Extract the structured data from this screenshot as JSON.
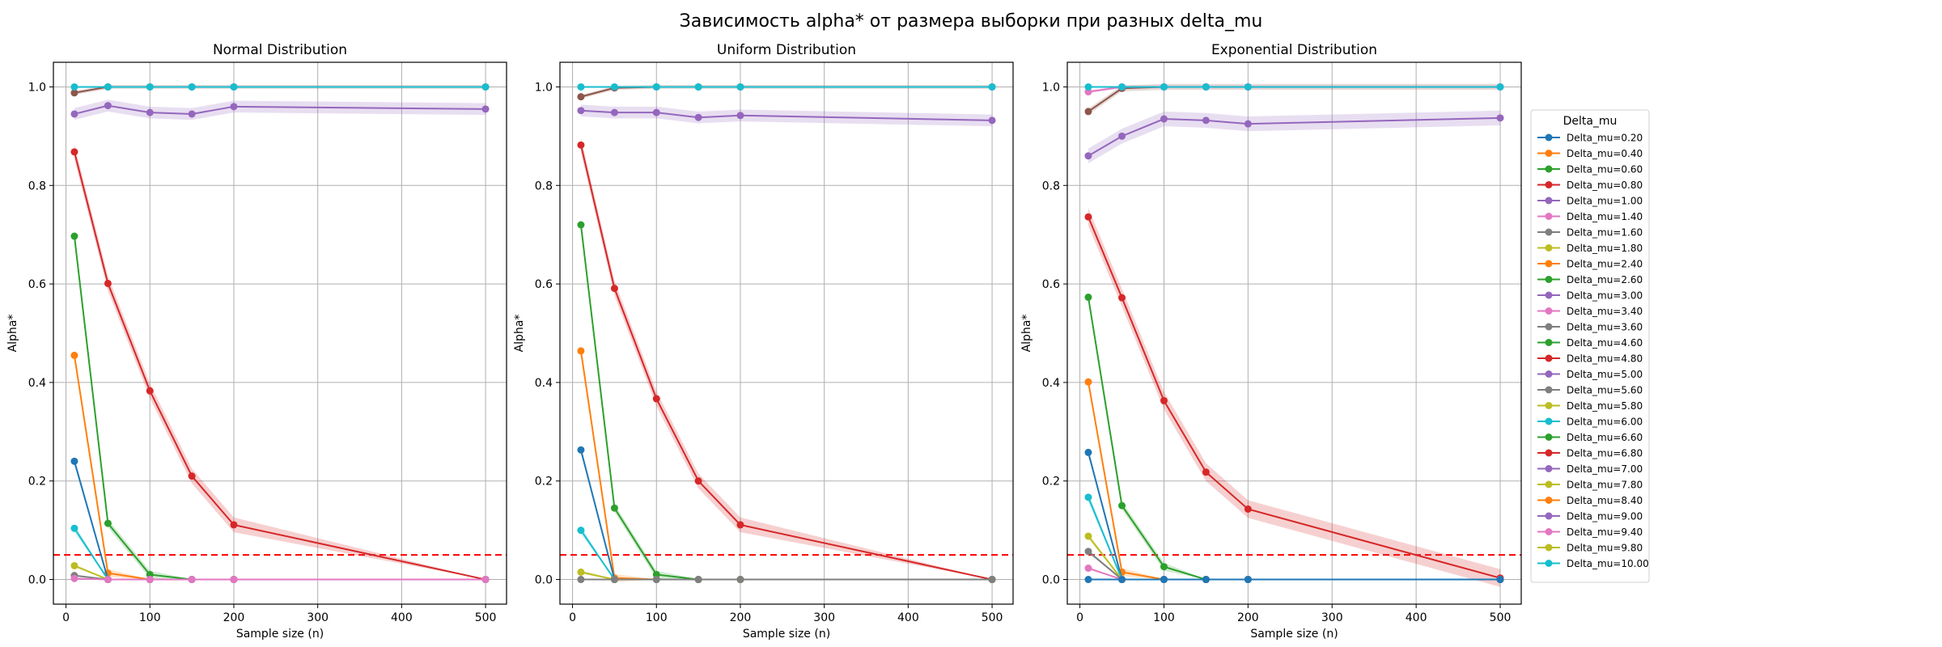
{
  "figure": {
    "title": "Зависимость alpha* от размера выборки при разных delta_mu"
  },
  "legend": {
    "title": "Delta_mu",
    "entries": [
      {
        "label": "Delta_mu=0.20",
        "color": "#1f77b4"
      },
      {
        "label": "Delta_mu=0.40",
        "color": "#ff7f0e"
      },
      {
        "label": "Delta_mu=0.60",
        "color": "#2ca02c"
      },
      {
        "label": "Delta_mu=0.80",
        "color": "#d62728"
      },
      {
        "label": "Delta_mu=1.00",
        "color": "#9467bd"
      },
      {
        "label": "Delta_mu=1.40",
        "color": "#e377c2"
      },
      {
        "label": "Delta_mu=1.60",
        "color": "#7f7f7f"
      },
      {
        "label": "Delta_mu=1.80",
        "color": "#bcbd22"
      },
      {
        "label": "Delta_mu=2.40",
        "color": "#ff7f0e"
      },
      {
        "label": "Delta_mu=2.60",
        "color": "#2ca02c"
      },
      {
        "label": "Delta_mu=3.00",
        "color": "#9467bd"
      },
      {
        "label": "Delta_mu=3.40",
        "color": "#e377c2"
      },
      {
        "label": "Delta_mu=3.60",
        "color": "#7f7f7f"
      },
      {
        "label": "Delta_mu=4.60",
        "color": "#2ca02c"
      },
      {
        "label": "Delta_mu=4.80",
        "color": "#d62728"
      },
      {
        "label": "Delta_mu=5.00",
        "color": "#9467bd"
      },
      {
        "label": "Delta_mu=5.60",
        "color": "#7f7f7f"
      },
      {
        "label": "Delta_mu=5.80",
        "color": "#bcbd22"
      },
      {
        "label": "Delta_mu=6.00",
        "color": "#17becf"
      },
      {
        "label": "Delta_mu=6.60",
        "color": "#2ca02c"
      },
      {
        "label": "Delta_mu=6.80",
        "color": "#d62728"
      },
      {
        "label": "Delta_mu=7.00",
        "color": "#9467bd"
      },
      {
        "label": "Delta_mu=7.80",
        "color": "#bcbd22"
      },
      {
        "label": "Delta_mu=8.40",
        "color": "#ff7f0e"
      },
      {
        "label": "Delta_mu=9.00",
        "color": "#9467bd"
      },
      {
        "label": "Delta_mu=9.40",
        "color": "#e377c2"
      },
      {
        "label": "Delta_mu=9.80",
        "color": "#bcbd22"
      },
      {
        "label": "Delta_mu=10.00",
        "color": "#17becf"
      }
    ]
  },
  "chart_data": [
    {
      "type": "line",
      "title": "Normal Distribution",
      "xlabel": "Sample size (n)",
      "ylabel": "Alpha*",
      "xlim": [
        -15,
        525
      ],
      "ylim": [
        -0.05,
        1.05
      ],
      "xticks": [
        0,
        100,
        200,
        300,
        400,
        500
      ],
      "yticks": [
        0.0,
        0.2,
        0.4,
        0.6,
        0.8,
        1.0
      ],
      "grid": true,
      "threshold": {
        "y": 0.05,
        "color": "#ff0000",
        "style": "dashed"
      },
      "x": [
        10,
        50,
        100,
        150,
        200,
        500
      ],
      "series": [
        {
          "color": "#9467bd",
          "values": [
            0.945,
            0.962,
            0.948,
            0.945,
            0.96,
            0.955
          ],
          "band": 0.012
        },
        {
          "color": "#d62728",
          "values": [
            0.868,
            0.601,
            0.383,
            0.21,
            0.111,
            0.0
          ],
          "band": 0.015
        },
        {
          "color": "#2ca02c",
          "values": [
            0.697,
            0.114,
            0.01,
            0.0,
            0.0,
            0.0
          ],
          "band": 0.008
        },
        {
          "color": "#ff7f0e",
          "values": [
            0.455,
            0.013,
            0.0,
            0.0,
            0.0,
            0.0
          ],
          "band": 0.008
        },
        {
          "color": "#1f77b4",
          "values": [
            0.24,
            0.0,
            0.0,
            0.0,
            0.0,
            0.0
          ],
          "band": 0.008
        },
        {
          "color": "#17becf",
          "values": [
            0.104,
            0.0,
            0.0,
            0.0,
            0.0,
            0.0
          ],
          "band": 0.008
        },
        {
          "color": "#bcbd22",
          "values": [
            0.028,
            0.0,
            0.0,
            0.0,
            0.0,
            0.0
          ],
          "band": 0.004
        },
        {
          "color": "#7f7f7f",
          "values": [
            0.008,
            0.0,
            0.0,
            0.0,
            0.0,
            0.0
          ],
          "band": 0.0
        },
        {
          "color": "#e377c2",
          "values": [
            0.002,
            0.0,
            0.0,
            0.0,
            0.0,
            0.0
          ],
          "band": 0.0
        },
        {
          "color": "#8c564b",
          "values": [
            0.988,
            1.0,
            1.0,
            1.0,
            1.0,
            1.0
          ],
          "band": 0.004
        },
        {
          "color": "#17becf",
          "values": [
            1.0,
            1.0,
            1.0,
            1.0,
            1.0,
            1.0
          ],
          "band": 0.0
        }
      ]
    },
    {
      "type": "line",
      "title": "Uniform Distribution",
      "xlabel": "Sample size (n)",
      "ylabel": "Alpha*",
      "xlim": [
        -15,
        525
      ],
      "ylim": [
        -0.05,
        1.05
      ],
      "xticks": [
        0,
        100,
        200,
        300,
        400,
        500
      ],
      "yticks": [
        0.0,
        0.2,
        0.4,
        0.6,
        0.8,
        1.0
      ],
      "grid": true,
      "threshold": {
        "y": 0.05,
        "color": "#ff0000",
        "style": "dashed"
      },
      "x": [
        10,
        50,
        100,
        150,
        200,
        500
      ],
      "series": [
        {
          "color": "#9467bd",
          "values": [
            0.952,
            0.948,
            0.948,
            0.938,
            0.942,
            0.932
          ],
          "band": 0.012
        },
        {
          "color": "#d62728",
          "values": [
            0.882,
            0.591,
            0.367,
            0.2,
            0.111,
            0.0
          ],
          "band": 0.015
        },
        {
          "color": "#2ca02c",
          "values": [
            0.72,
            0.145,
            0.01,
            0.0,
            0.0,
            0.0
          ],
          "band": 0.008
        },
        {
          "color": "#ff7f0e",
          "values": [
            0.464,
            0.003,
            0.0,
            0.0,
            0.0,
            0.0
          ],
          "band": 0.008
        },
        {
          "color": "#1f77b4",
          "values": [
            0.263,
            0.0,
            0.0,
            0.0,
            0.0,
            0.0
          ],
          "band": 0.008
        },
        {
          "color": "#17becf",
          "values": [
            0.1,
            0.0,
            0.0,
            0.0,
            0.0,
            0.0
          ],
          "band": 0.008
        },
        {
          "color": "#bcbd22",
          "values": [
            0.015,
            0.0,
            0.0,
            0.0,
            0.0,
            0.0
          ],
          "band": 0.004
        },
        {
          "color": "#7f7f7f",
          "values": [
            0.0,
            0.0,
            0.0,
            0.0,
            0.0,
            0.0
          ],
          "band": 0.0
        },
        {
          "color": "#8c564b",
          "values": [
            0.98,
            0.998,
            1.0,
            1.0,
            1.0,
            1.0
          ],
          "band": 0.004
        },
        {
          "color": "#17becf",
          "values": [
            1.0,
            1.0,
            1.0,
            1.0,
            1.0,
            1.0
          ],
          "band": 0.0
        }
      ]
    },
    {
      "type": "line",
      "title": "Exponential Distribution",
      "xlabel": "Sample size (n)",
      "ylabel": "Alpha*",
      "xlim": [
        -15,
        525
      ],
      "ylim": [
        -0.05,
        1.05
      ],
      "xticks": [
        0,
        100,
        200,
        300,
        400,
        500
      ],
      "yticks": [
        0.0,
        0.2,
        0.4,
        0.6,
        0.8,
        1.0
      ],
      "grid": true,
      "threshold": {
        "y": 0.05,
        "color": "#ff0000",
        "style": "dashed"
      },
      "x": [
        10,
        50,
        100,
        150,
        200,
        500
      ],
      "series": [
        {
          "color": "#9467bd",
          "values": [
            0.86,
            0.9,
            0.935,
            0.932,
            0.925,
            0.937
          ],
          "band": 0.015
        },
        {
          "color": "#d62728",
          "values": [
            0.736,
            0.572,
            0.363,
            0.218,
            0.143,
            0.003
          ],
          "band": 0.018
        },
        {
          "color": "#2ca02c",
          "values": [
            0.573,
            0.15,
            0.026,
            0.0,
            0.0,
            0.0
          ],
          "band": 0.008
        },
        {
          "color": "#ff7f0e",
          "values": [
            0.401,
            0.015,
            0.0,
            0.0,
            0.0,
            0.0
          ],
          "band": 0.008
        },
        {
          "color": "#1f77b4",
          "values": [
            0.258,
            0.0,
            0.0,
            0.0,
            0.0,
            0.0
          ],
          "band": 0.008
        },
        {
          "color": "#17becf",
          "values": [
            0.167,
            0.0,
            0.0,
            0.0,
            0.0,
            0.0
          ],
          "band": 0.01
        },
        {
          "color": "#bcbd22",
          "values": [
            0.088,
            0.0,
            0.0,
            0.0,
            0.0,
            0.0
          ],
          "band": 0.006
        },
        {
          "color": "#7f7f7f",
          "values": [
            0.057,
            0.0,
            0.0,
            0.0,
            0.0,
            0.0
          ],
          "band": 0.004
        },
        {
          "color": "#e377c2",
          "values": [
            0.023,
            0.0,
            0.0,
            0.0,
            0.0,
            0.0
          ],
          "band": 0.003
        },
        {
          "color": "#1f77b4",
          "values": [
            0.0,
            0.0,
            0.0,
            0.0,
            0.0,
            0.0
          ],
          "band": 0.0
        },
        {
          "color": "#8c564b",
          "values": [
            0.95,
            0.997,
            1.0,
            1.0,
            1.0,
            1.0
          ],
          "band": 0.006
        },
        {
          "color": "#e377c2",
          "values": [
            0.99,
            1.0,
            1.0,
            1.0,
            1.0,
            1.0
          ],
          "band": 0.003
        },
        {
          "color": "#17becf",
          "values": [
            1.0,
            1.0,
            1.0,
            1.0,
            1.0,
            1.0
          ],
          "band": 0.0
        }
      ]
    }
  ]
}
